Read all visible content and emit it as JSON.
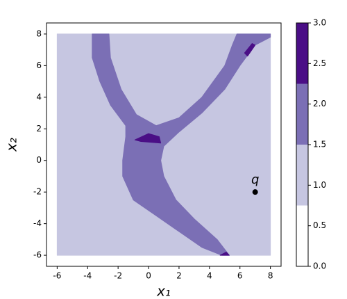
{
  "chart_data": {
    "type": "contourf",
    "xlabel": "x₁",
    "ylabel": "x₂",
    "xlim": [
      -6.7,
      8.7
    ],
    "ylim": [
      -6.7,
      8.7
    ],
    "xticks": [
      -6,
      -4,
      -2,
      0,
      2,
      4,
      6,
      8
    ],
    "yticks": [
      -6,
      -4,
      -2,
      0,
      2,
      4,
      6,
      8
    ],
    "regions": [
      {
        "value": 1,
        "x": [
          -6,
          8,
          8,
          -6
        ],
        "y": [
          -6,
          -6,
          8,
          8
        ]
      },
      {
        "value": 2,
        "x": [
          -3.7,
          -3.7,
          -3.2,
          -2.5,
          -1.5,
          -1.5,
          -1.7,
          -1.7,
          -1.0,
          0.5,
          2,
          3.5,
          4.8,
          5.3,
          4.5,
          3,
          1.8,
          1,
          0.8,
          1,
          2,
          3.5,
          5,
          6,
          7,
          8,
          8,
          5.8,
          5.5,
          5,
          3.5,
          2,
          0.5,
          -0.8,
          -1.8,
          -2.5,
          -2.6
        ],
        "y": [
          8,
          6.5,
          5,
          3.5,
          2.2,
          1.5,
          0,
          -1,
          -2.5,
          -3.5,
          -4.5,
          -5.5,
          -6,
          -6,
          -5,
          -3.7,
          -2.5,
          -1,
          0,
          0.9,
          1.8,
          3,
          4.5,
          6,
          7.3,
          7.8,
          8,
          8,
          7.3,
          6,
          4,
          2.7,
          2.2,
          2.9,
          4.5,
          6.5,
          8
        ]
      },
      {
        "value": 3,
        "x": [
          -0.9,
          0,
          0.7,
          0.8,
          -0.5
        ],
        "y": [
          1.3,
          1.7,
          1.5,
          1.1,
          1.2
        ]
      },
      {
        "value": 3,
        "x": [
          6.3,
          6.8,
          7,
          6.5
        ],
        "y": [
          6.8,
          7.4,
          7.3,
          6.6
        ]
      },
      {
        "value": 3,
        "x": [
          4.7,
          5.1,
          5.3
        ],
        "y": [
          -6,
          -5.8,
          -6
        ]
      }
    ],
    "points": [
      {
        "label": "q",
        "x": 7,
        "y": -2,
        "color": "#000000"
      }
    ],
    "colorbar": {
      "boundaries": [
        0,
        0.75,
        1.5,
        2.25,
        3
      ],
      "colors": [
        "#ffffff",
        "#c6c6e1",
        "#7b6fb5",
        "#4a0e86"
      ],
      "ticks": [
        {
          "value": 0,
          "label": "0.0"
        },
        {
          "value": 0.5,
          "label": "0.5"
        },
        {
          "value": 1,
          "label": "1.0"
        },
        {
          "value": 1.5,
          "label": "1.5"
        },
        {
          "value": 2,
          "label": "2.0"
        },
        {
          "value": 2.5,
          "label": "2.5"
        },
        {
          "value": 3,
          "label": "3.0"
        }
      ]
    }
  }
}
